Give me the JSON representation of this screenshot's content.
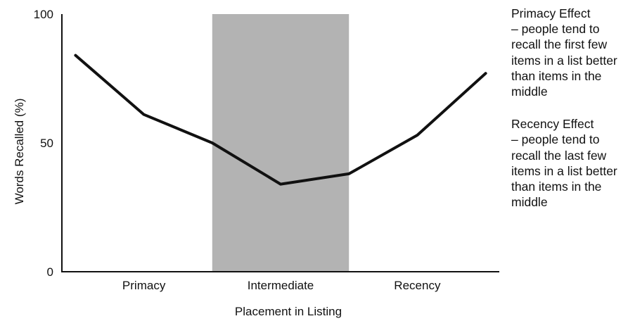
{
  "chart_data": {
    "type": "line",
    "xlabel": "Placement in Listing",
    "ylabel": "Words Recalled (%)",
    "ylim": [
      0,
      100
    ],
    "yticks": [
      0,
      50,
      100
    ],
    "categories": [
      "Primacy",
      "Intermediate",
      "Recency"
    ],
    "x": [
      0,
      1,
      2,
      3,
      4,
      5,
      6
    ],
    "xlim": [
      -0.2,
      6.2
    ],
    "series": [
      {
        "values": [
          84,
          61,
          50,
          34,
          38,
          53,
          77
        ]
      }
    ],
    "highlight_band": {
      "x_start": 2,
      "x_end": 4,
      "color": "#b3b3b3"
    },
    "line_color": "#111111",
    "grid": false,
    "annotations": [
      {
        "title": "Primacy Effect",
        "text": "– people tend to recall the first few items in a list better than items in the middle"
      },
      {
        "title": "Recency Effect",
        "text": "– people tend to recall the last few items in a list better than items in the middle"
      }
    ]
  }
}
